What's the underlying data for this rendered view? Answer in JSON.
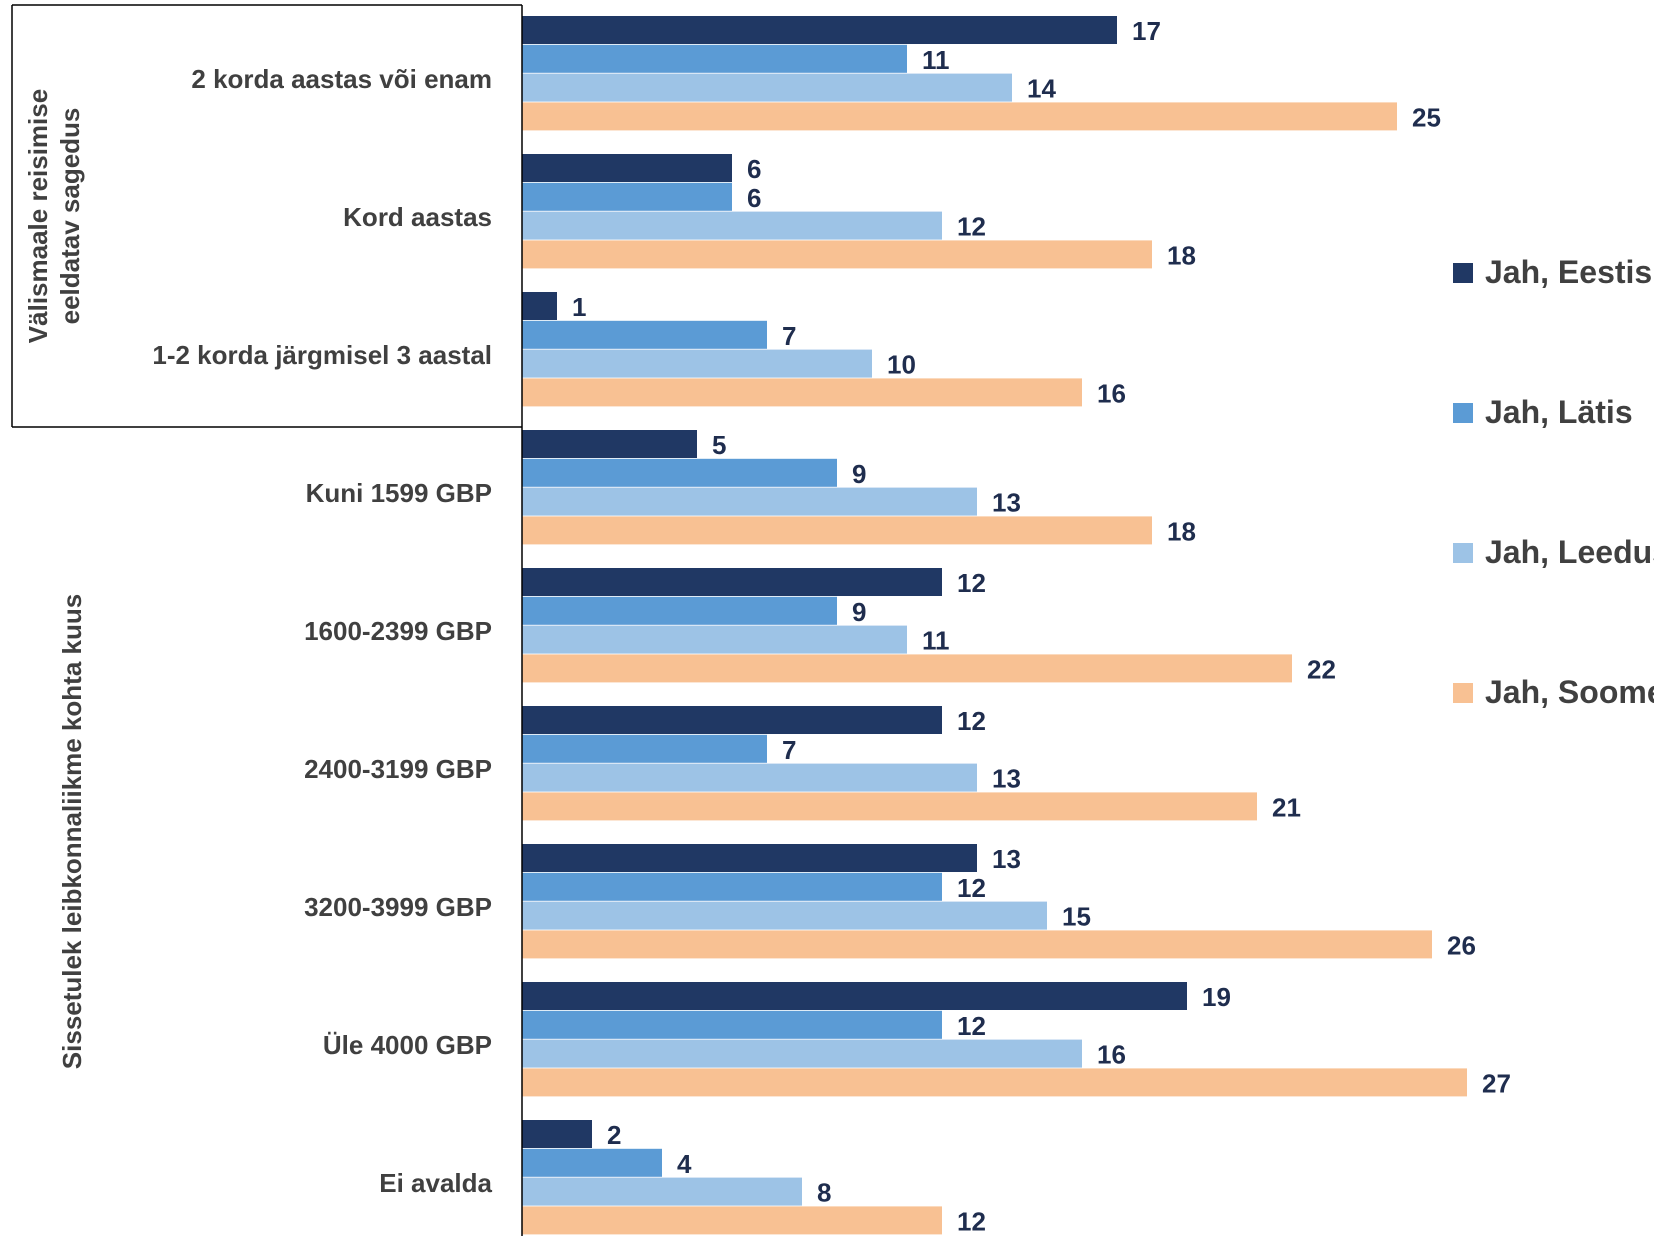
{
  "chart_data": {
    "type": "bar",
    "orientation": "horizontal",
    "groups": [
      {
        "label": "Välismaale reisimise eeldatav sagedus",
        "categories": [
          "2 korda aastas või enam",
          "Kord aastas",
          "1-2 korda järgmisel 3 aastal"
        ]
      },
      {
        "label": "Sissetulek leibkonnaliikme kohta kuus",
        "categories": [
          "Kuni 1599 GBP",
          "1600-2399 GBP",
          "2400-3199 GBP",
          "3200-3999 GBP",
          "Üle 4000 GBP",
          "Ei avalda"
        ]
      }
    ],
    "categories": [
      "2 korda aastas või enam",
      "Kord aastas",
      "1-2 korda järgmisel 3 aastal",
      "Kuni 1599 GBP",
      "1600-2399 GBP",
      "2400-3199 GBP",
      "3200-3999 GBP",
      "Üle 4000 GBP",
      "Ei avalda"
    ],
    "series": [
      {
        "name": "Jah, Eestis",
        "color": "#203864",
        "values": [
          17,
          6,
          1,
          5,
          12,
          12,
          13,
          19,
          2
        ]
      },
      {
        "name": "Jah, Lätis",
        "color": "#5b9bd5",
        "values": [
          11,
          6,
          7,
          9,
          9,
          7,
          12,
          12,
          4
        ]
      },
      {
        "name": "Jah, Leedus",
        "color": "#9dc3e6",
        "values": [
          14,
          12,
          10,
          13,
          11,
          13,
          15,
          16,
          8
        ]
      },
      {
        "name": "Jah, Soomes",
        "color": "#f8c193",
        "values": [
          25,
          18,
          16,
          18,
          22,
          21,
          26,
          27,
          12
        ]
      }
    ],
    "xlim": [
      0,
      28
    ],
    "grid": false,
    "legend_position": "right",
    "data_labels": true
  }
}
